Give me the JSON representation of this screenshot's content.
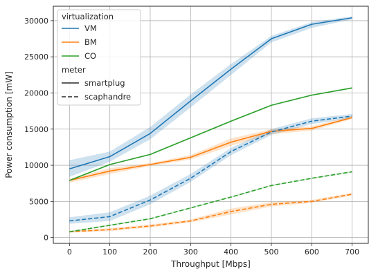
{
  "chart_data": {
    "type": "line",
    "title": "",
    "xlabel": "Throughput [Mbps]",
    "ylabel": "Power consumption [mW]",
    "x": [
      0,
      100,
      200,
      300,
      400,
      500,
      600,
      700
    ],
    "xlim": [
      -40,
      740
    ],
    "ylim": [
      -800,
      32000
    ],
    "xticks": [
      0,
      100,
      200,
      300,
      400,
      500,
      600,
      700
    ],
    "yticks": [
      0,
      5000,
      10000,
      15000,
      20000,
      25000,
      30000
    ],
    "grid": true,
    "legend_placement": "top-left",
    "legend": {
      "hue_title": "virtualization",
      "style_title": "meter",
      "hue_entries": [
        {
          "label": "VM",
          "color": "#1f77b4"
        },
        {
          "label": "BM",
          "color": "#ff7f0e"
        },
        {
          "label": "CO",
          "color": "#2ca02c"
        }
      ],
      "style_entries": [
        {
          "label": "smartplug",
          "dash": "solid"
        },
        {
          "label": "scaphandre",
          "dash": "dashed"
        }
      ]
    },
    "series": [
      {
        "virtualization": "VM",
        "meter": "smartplug",
        "color": "#1f77b4",
        "dash": "solid",
        "values": [
          9500,
          11200,
          14400,
          18900,
          23300,
          27500,
          29500,
          30400
        ],
        "ci_low": [
          8400,
          10500,
          13600,
          18000,
          22500,
          27000,
          29000,
          30200
        ],
        "ci_high": [
          10700,
          11900,
          15300,
          19800,
          24000,
          27900,
          29800,
          30600
        ]
      },
      {
        "virtualization": "BM",
        "meter": "smartplug",
        "color": "#ff7f0e",
        "dash": "solid",
        "values": [
          7900,
          9200,
          10100,
          11100,
          13200,
          14700,
          15100,
          16600
        ],
        "ci_low": [
          7600,
          8800,
          9900,
          10800,
          12700,
          14300,
          14800,
          16400
        ],
        "ci_high": [
          8100,
          9600,
          10300,
          11400,
          13700,
          15000,
          15400,
          16800
        ]
      },
      {
        "virtualization": "CO",
        "meter": "smartplug",
        "color": "#2ca02c",
        "dash": "solid",
        "values": [
          7900,
          10100,
          11500,
          13800,
          16100,
          18300,
          19700,
          20700
        ],
        "ci_low": [
          7800,
          10000,
          11400,
          13700,
          16000,
          18200,
          19600,
          20600
        ],
        "ci_high": [
          8000,
          10200,
          11600,
          13900,
          16200,
          18400,
          19800,
          20800
        ]
      },
      {
        "virtualization": "VM",
        "meter": "scaphandre",
        "color": "#1f77b4",
        "dash": "dashed",
        "values": [
          2300,
          2900,
          5200,
          8200,
          11900,
          14600,
          16100,
          16800
        ],
        "ci_low": [
          1900,
          2300,
          4600,
          7700,
          11400,
          14200,
          15700,
          16500
        ],
        "ci_high": [
          2800,
          3500,
          5800,
          8800,
          12400,
          15000,
          16500,
          17100
        ]
      },
      {
        "virtualization": "BM",
        "meter": "scaphandre",
        "color": "#ff7f0e",
        "dash": "dashed",
        "values": [
          800,
          1100,
          1600,
          2300,
          3600,
          4600,
          5000,
          6000
        ],
        "ci_low": [
          700,
          900,
          1400,
          2100,
          3200,
          4300,
          4800,
          5800
        ],
        "ci_high": [
          900,
          1300,
          1800,
          2500,
          4000,
          4900,
          5200,
          6200
        ]
      },
      {
        "virtualization": "CO",
        "meter": "scaphandre",
        "color": "#2ca02c",
        "dash": "dashed",
        "values": [
          800,
          1700,
          2600,
          4100,
          5600,
          7200,
          8200,
          9100
        ],
        "ci_low": [
          700,
          1600,
          2500,
          4000,
          5500,
          7100,
          8100,
          9000
        ],
        "ci_high": [
          900,
          1800,
          2700,
          4200,
          5700,
          7300,
          8300,
          9200
        ]
      }
    ]
  }
}
